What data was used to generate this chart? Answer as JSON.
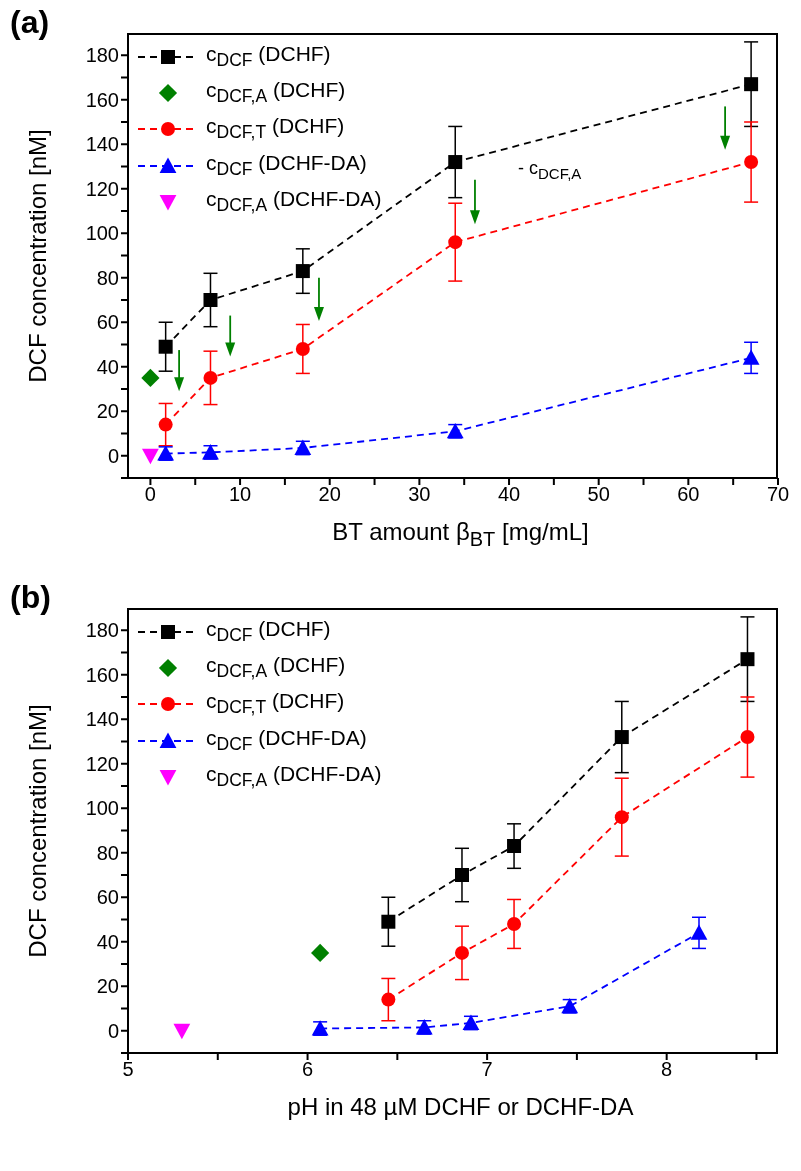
{
  "chart_data": [
    {
      "type": "line",
      "title": "(a)",
      "xlabel": "BT amount β$_{BT}$ [mg/mL]",
      "ylabel": "DCF concentration [nM]",
      "xlim": [
        -2.5,
        70
      ],
      "xticks": [
        0,
        {
          "value": 5,
          "label": null
        },
        10,
        {
          "value": 15,
          "label": null
        },
        20,
        {
          "value": 25,
          "label": null
        },
        30,
        {
          "value": 35,
          "label": null
        },
        40,
        {
          "value": 45,
          "label": null
        },
        50,
        {
          "value": 55,
          "label": null
        },
        60,
        {
          "value": 65,
          "label": null
        },
        70
      ],
      "ylim": [
        -10,
        190
      ],
      "yticks": [
        {
          "value": -10,
          "label": null
        },
        0,
        {
          "value": 10,
          "label": null
        },
        20,
        {
          "value": 30,
          "label": null
        },
        40,
        {
          "value": 50,
          "label": null
        },
        60,
        {
          "value": 70,
          "label": null
        },
        80,
        {
          "value": 90,
          "label": null
        },
        100,
        {
          "value": 110,
          "label": null
        },
        120,
        {
          "value": 130,
          "label": null
        },
        140,
        {
          "value": 150,
          "label": null
        },
        160,
        {
          "value": 170,
          "label": null
        },
        180
      ],
      "legend": "top left",
      "line_style": "dashed",
      "annotations": [
        "- c$_{DCF,A}$"
      ],
      "series": [
        {
          "name": "c$_{DCF}$ (DCHF)",
          "color": "#000000",
          "marker": "square",
          "x": [
            1.7,
            6.7,
            17,
            34,
            67
          ],
          "values": [
            49,
            70,
            83,
            132,
            167
          ],
          "errors": [
            11,
            12,
            10,
            16,
            19
          ]
        },
        {
          "name": "c$_{DCF,A}$ (DCHF)",
          "color": "#008000",
          "type": "scatter",
          "marker": "diamond",
          "x": [
            0
          ],
          "values": [
            35
          ]
        },
        {
          "name": "c$_{DCF,T}$ (DCHF)",
          "color": "#ff0000",
          "marker": "circle",
          "x": [
            1.7,
            6.7,
            17,
            34,
            67
          ],
          "values": [
            14,
            35,
            48,
            96,
            132
          ],
          "errors": [
            9.5,
            12,
            11,
            17.5,
            18
          ]
        },
        {
          "name": "c$_{DCF}$ (DCHF-DA)",
          "color": "#0000ff",
          "marker": "triangle",
          "x": [
            1.7,
            6.7,
            17,
            34,
            67
          ],
          "values": [
            1,
            1.5,
            3.5,
            11,
            44
          ],
          "errors": [
            3,
            3,
            3,
            3,
            7
          ]
        },
        {
          "name": "c$_{DCF,A}$ (DCHF-DA)",
          "color": "#ff00ff",
          "type": "scatter",
          "marker": "triangle-down",
          "x": [
            0
          ],
          "values": [
            0
          ]
        }
      ]
    },
    {
      "type": "line",
      "title": "(b)",
      "xlabel": "pH in 48 µM DCHF or DCHF-DA",
      "ylabel": "DCF concentration [nM]",
      "xlim": [
        5,
        8.62
      ],
      "xticks": [
        5,
        {
          "value": 5.5,
          "label": null
        },
        6,
        {
          "value": 6.5,
          "label": null
        },
        7,
        {
          "value": 7.5,
          "label": null
        },
        8,
        {
          "value": 8.5,
          "label": null
        }
      ],
      "ylim": [
        -10,
        190
      ],
      "yticks": [
        {
          "value": -10,
          "label": null
        },
        0,
        {
          "value": 10,
          "label": null
        },
        20,
        {
          "value": 30,
          "label": null
        },
        40,
        {
          "value": 50,
          "label": null
        },
        60,
        {
          "value": 70,
          "label": null
        },
        80,
        {
          "value": 90,
          "label": null
        },
        100,
        {
          "value": 110,
          "label": null
        },
        120,
        {
          "value": 130,
          "label": null
        },
        140,
        {
          "value": 150,
          "label": null
        },
        160,
        {
          "value": 170,
          "label": null
        },
        180
      ],
      "legend": "top left",
      "line_style": "dashed",
      "series": [
        {
          "name": "c$_{DCF}$ (DCHF)",
          "color": "#000000",
          "marker": "square",
          "x": [
            6.45,
            6.86,
            7.15,
            7.75,
            8.45
          ],
          "values": [
            49,
            70,
            83,
            132,
            167
          ],
          "errors": [
            11,
            12,
            10,
            16,
            19
          ]
        },
        {
          "name": "c$_{DCF,A}$ (DCHF)",
          "color": "#008000",
          "type": "scatter",
          "marker": "diamond",
          "x": [
            6.07
          ],
          "values": [
            35
          ]
        },
        {
          "name": "c$_{DCF,T}$ (DCHF)",
          "color": "#ff0000",
          "marker": "circle",
          "x": [
            6.45,
            6.86,
            7.15,
            7.75,
            8.45
          ],
          "values": [
            14,
            35,
            48,
            96,
            132
          ],
          "errors": [
            9.5,
            12,
            11,
            17.5,
            18
          ]
        },
        {
          "name": "c$_{DCF}$ (DCHF-DA)",
          "color": "#0000ff",
          "marker": "triangle",
          "x": [
            6.07,
            6.65,
            6.91,
            7.46,
            8.18
          ],
          "values": [
            1,
            1.5,
            3.5,
            11,
            44
          ],
          "errors": [
            3,
            3,
            3,
            3,
            7
          ]
        },
        {
          "name": "c$_{DCF,A}$ (DCHF-DA)",
          "color": "#ff00ff",
          "type": "scatter",
          "marker": "triangle-down",
          "x": [
            5.3
          ],
          "values": [
            0
          ]
        }
      ]
    }
  ]
}
